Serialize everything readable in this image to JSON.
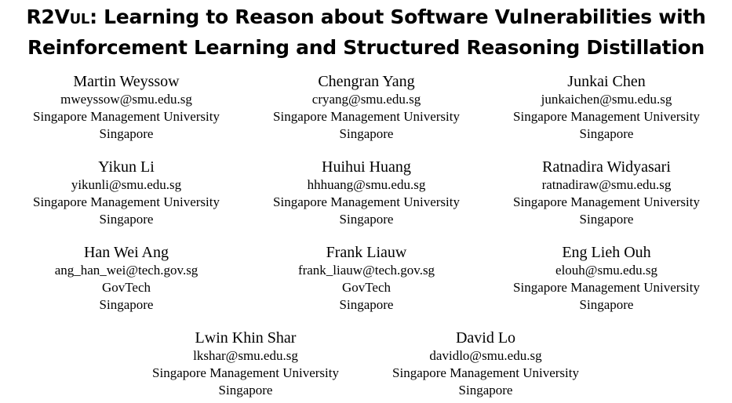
{
  "title": {
    "brand_first": "R2V",
    "brand_rest": "UL",
    "line1_rest": ": Learning to Reason about Software Vulnerabilities with",
    "line2": "Reinforcement Learning and Structured Reasoning Distillation"
  },
  "authors": [
    {
      "name": "Martin Weyssow",
      "email": "mweyssow@smu.edu.sg",
      "affiliation": "Singapore Management University",
      "country": "Singapore"
    },
    {
      "name": "Chengran Yang",
      "email": "cryang@smu.edu.sg",
      "affiliation": "Singapore Management University",
      "country": "Singapore"
    },
    {
      "name": "Junkai Chen",
      "email": "junkaichen@smu.edu.sg",
      "affiliation": "Singapore Management University",
      "country": "Singapore"
    },
    {
      "name": "Yikun Li",
      "email": "yikunli@smu.edu.sg",
      "affiliation": "Singapore Management University",
      "country": "Singapore"
    },
    {
      "name": "Huihui Huang",
      "email": "hhhuang@smu.edu.sg",
      "affiliation": "Singapore Management University",
      "country": "Singapore"
    },
    {
      "name": "Ratnadira Widyasari",
      "email": "ratnadiraw@smu.edu.sg",
      "affiliation": "Singapore Management University",
      "country": "Singapore"
    },
    {
      "name": "Han Wei Ang",
      "email": "ang_han_wei@tech.gov.sg",
      "affiliation": "GovTech",
      "country": "Singapore"
    },
    {
      "name": "Frank Liauw",
      "email": "frank_liauw@tech.gov.sg",
      "affiliation": "GovTech",
      "country": "Singapore"
    },
    {
      "name": "Eng Lieh Ouh",
      "email": "elouh@smu.edu.sg",
      "affiliation": "Singapore Management University",
      "country": "Singapore"
    },
    {
      "name": "Lwin Khin Shar",
      "email": "lkshar@smu.edu.sg",
      "affiliation": "Singapore Management University",
      "country": "Singapore"
    },
    {
      "name": "David Lo",
      "email": "davidlo@smu.edu.sg",
      "affiliation": "Singapore Management University",
      "country": "Singapore"
    }
  ]
}
